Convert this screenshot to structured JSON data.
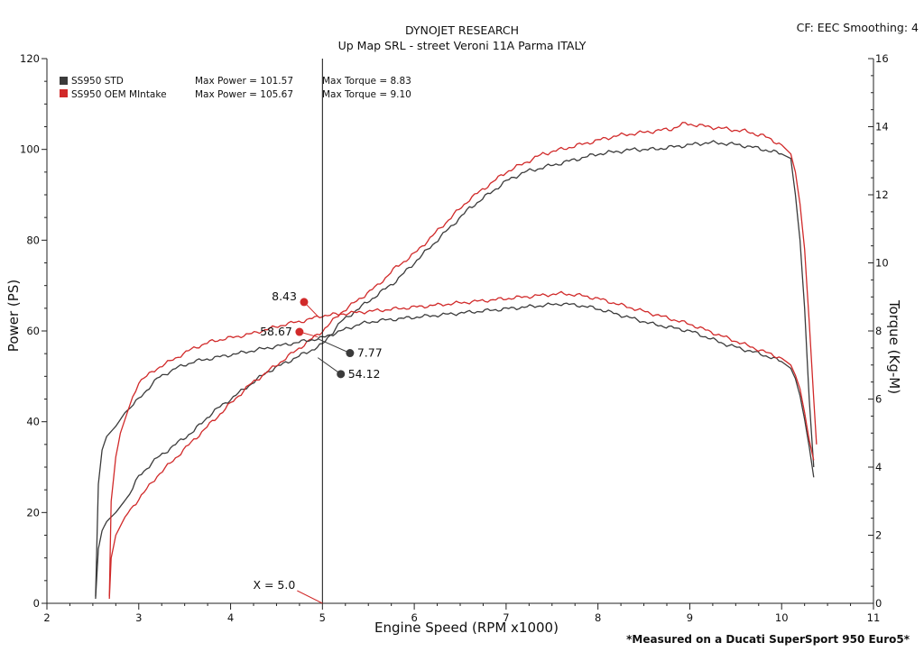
{
  "header": {
    "title": "DYNOJET RESEARCH",
    "subtitle": "Up Map SRL - street Veroni 11A Parma ITALY",
    "settings": "CF: EEC  Smoothing: 4"
  },
  "footnote": "*Measured on a Ducati SuperSport 950 Euro5*",
  "colors": {
    "std": "#3b3b3b",
    "oem": "#d12a2a",
    "axis": "#222222"
  },
  "chart_data": {
    "type": "line",
    "title": "DYNOJET RESEARCH",
    "subtitle": "Up Map SRL - street Veroni 11A Parma ITALY",
    "xlabel": "Engine Speed (RPM x1000)",
    "ylabel_left": "Power (PS)",
    "ylabel_right": "Torque (Kg-M)",
    "xlim": [
      2,
      11
    ],
    "ylim_left": [
      0,
      120
    ],
    "ylim_right": [
      0,
      16
    ],
    "x_ticks": [
      "2",
      "3",
      "4",
      "5",
      "6",
      "7",
      "8",
      "9",
      "10",
      "11"
    ],
    "y_left_ticks": [
      "0",
      "20",
      "40",
      "60",
      "80",
      "100",
      "120"
    ],
    "y_right_ticks": [
      "0",
      "2",
      "4",
      "6",
      "8",
      "10",
      "12",
      "14",
      "16"
    ],
    "grid": false,
    "legend": {
      "position": "top-left",
      "entries": [
        {
          "name": "SS950 STD",
          "color_key": "std",
          "max_power": "Max Power = 101.57",
          "max_torque": "Max Torque = 8.83"
        },
        {
          "name": "SS950 OEM MIntake",
          "color_key": "oem",
          "max_power": "Max Power = 105.67",
          "max_torque": "Max Torque = 9.10"
        }
      ]
    },
    "cursor": {
      "x": 5.0,
      "label": "X = 5.0"
    },
    "series": [
      {
        "name": "SS950 STD",
        "measure": "power",
        "axis": "left",
        "color_key": "std",
        "points": [
          [
            2.53,
            1
          ],
          [
            2.56,
            12
          ],
          [
            2.6,
            16
          ],
          [
            2.65,
            18
          ],
          [
            2.75,
            20
          ],
          [
            2.9,
            24
          ],
          [
            3.0,
            28
          ],
          [
            3.2,
            32
          ],
          [
            3.4,
            35
          ],
          [
            3.6,
            38
          ],
          [
            3.8,
            42
          ],
          [
            4.0,
            45
          ],
          [
            4.2,
            48
          ],
          [
            4.4,
            51
          ],
          [
            4.6,
            53
          ],
          [
            4.8,
            55
          ],
          [
            5.0,
            57
          ],
          [
            5.2,
            62
          ],
          [
            5.4,
            65
          ],
          [
            5.6,
            68
          ],
          [
            5.8,
            71
          ],
          [
            6.0,
            75
          ],
          [
            6.2,
            79
          ],
          [
            6.4,
            83
          ],
          [
            6.6,
            87
          ],
          [
            6.8,
            90
          ],
          [
            7.0,
            93
          ],
          [
            7.2,
            95
          ],
          [
            7.4,
            96
          ],
          [
            7.6,
            97
          ],
          [
            7.8,
            98
          ],
          [
            8.0,
            99
          ],
          [
            8.2,
            99.5
          ],
          [
            8.4,
            100
          ],
          [
            8.6,
            100
          ],
          [
            8.8,
            100.5
          ],
          [
            9.0,
            101
          ],
          [
            9.2,
            101.5
          ],
          [
            9.4,
            101.3
          ],
          [
            9.6,
            100.8
          ],
          [
            9.8,
            100
          ],
          [
            10.0,
            99
          ],
          [
            10.1,
            98
          ],
          [
            10.15,
            90
          ],
          [
            10.2,
            80
          ],
          [
            10.25,
            65
          ],
          [
            10.3,
            45
          ],
          [
            10.35,
            30
          ]
        ]
      },
      {
        "name": "SS950 OEM MIntake",
        "measure": "power",
        "axis": "left",
        "color_key": "oem",
        "points": [
          [
            2.68,
            1
          ],
          [
            2.7,
            10
          ],
          [
            2.75,
            15
          ],
          [
            2.85,
            19
          ],
          [
            3.0,
            23
          ],
          [
            3.2,
            28
          ],
          [
            3.4,
            32
          ],
          [
            3.6,
            36
          ],
          [
            3.8,
            40
          ],
          [
            4.0,
            44
          ],
          [
            4.2,
            48
          ],
          [
            4.4,
            51
          ],
          [
            4.6,
            54
          ],
          [
            4.8,
            57
          ],
          [
            5.0,
            60
          ],
          [
            5.2,
            64
          ],
          [
            5.4,
            67
          ],
          [
            5.6,
            70
          ],
          [
            5.8,
            74
          ],
          [
            6.0,
            77
          ],
          [
            6.2,
            81
          ],
          [
            6.4,
            85
          ],
          [
            6.6,
            89
          ],
          [
            6.8,
            92
          ],
          [
            7.0,
            95
          ],
          [
            7.2,
            97
          ],
          [
            7.4,
            99
          ],
          [
            7.6,
            100
          ],
          [
            7.8,
            101
          ],
          [
            8.0,
            102
          ],
          [
            8.2,
            103
          ],
          [
            8.4,
            103.5
          ],
          [
            8.6,
            104
          ],
          [
            8.8,
            104.5
          ],
          [
            8.95,
            105.7
          ],
          [
            9.2,
            105
          ],
          [
            9.4,
            104.5
          ],
          [
            9.6,
            104
          ],
          [
            9.8,
            103
          ],
          [
            10.0,
            101
          ],
          [
            10.1,
            99
          ],
          [
            10.15,
            95
          ],
          [
            10.2,
            88
          ],
          [
            10.25,
            78
          ],
          [
            10.3,
            62
          ],
          [
            10.35,
            45
          ],
          [
            10.38,
            35
          ]
        ]
      },
      {
        "name": "SS950 STD",
        "measure": "torque",
        "axis": "right",
        "color_key": "std",
        "points": [
          [
            2.53,
            0.2
          ],
          [
            2.56,
            3.5
          ],
          [
            2.6,
            4.5
          ],
          [
            2.65,
            4.9
          ],
          [
            2.75,
            5.2
          ],
          [
            2.85,
            5.6
          ],
          [
            3.0,
            6.0
          ],
          [
            3.2,
            6.6
          ],
          [
            3.4,
            6.9
          ],
          [
            3.6,
            7.1
          ],
          [
            3.8,
            7.2
          ],
          [
            4.0,
            7.3
          ],
          [
            4.2,
            7.4
          ],
          [
            4.4,
            7.5
          ],
          [
            4.6,
            7.6
          ],
          [
            4.8,
            7.7
          ],
          [
            5.0,
            7.8
          ],
          [
            5.2,
            8.0
          ],
          [
            5.4,
            8.2
          ],
          [
            5.6,
            8.3
          ],
          [
            5.8,
            8.35
          ],
          [
            6.0,
            8.4
          ],
          [
            6.2,
            8.45
          ],
          [
            6.4,
            8.5
          ],
          [
            6.6,
            8.55
          ],
          [
            6.8,
            8.6
          ],
          [
            7.0,
            8.65
          ],
          [
            7.2,
            8.7
          ],
          [
            7.4,
            8.75
          ],
          [
            7.6,
            8.8
          ],
          [
            7.8,
            8.75
          ],
          [
            8.0,
            8.65
          ],
          [
            8.2,
            8.5
          ],
          [
            8.4,
            8.35
          ],
          [
            8.6,
            8.2
          ],
          [
            8.8,
            8.1
          ],
          [
            9.0,
            8.0
          ],
          [
            9.2,
            7.8
          ],
          [
            9.4,
            7.6
          ],
          [
            9.6,
            7.45
          ],
          [
            9.8,
            7.3
          ],
          [
            10.0,
            7.1
          ],
          [
            10.1,
            6.9
          ],
          [
            10.15,
            6.6
          ],
          [
            10.2,
            6.1
          ],
          [
            10.25,
            5.4
          ],
          [
            10.3,
            4.6
          ],
          [
            10.35,
            3.7
          ]
        ]
      },
      {
        "name": "SS950 OEM MIntake",
        "measure": "torque",
        "axis": "right",
        "color_key": "oem",
        "points": [
          [
            2.68,
            0.2
          ],
          [
            2.7,
            3.0
          ],
          [
            2.75,
            4.3
          ],
          [
            2.8,
            5.0
          ],
          [
            2.9,
            5.8
          ],
          [
            3.0,
            6.5
          ],
          [
            3.2,
            6.9
          ],
          [
            3.4,
            7.2
          ],
          [
            3.6,
            7.5
          ],
          [
            3.8,
            7.7
          ],
          [
            4.0,
            7.8
          ],
          [
            4.2,
            7.9
          ],
          [
            4.4,
            8.05
          ],
          [
            4.6,
            8.2
          ],
          [
            4.8,
            8.3
          ],
          [
            5.0,
            8.45
          ],
          [
            5.2,
            8.5
          ],
          [
            5.4,
            8.55
          ],
          [
            5.6,
            8.6
          ],
          [
            5.8,
            8.65
          ],
          [
            6.0,
            8.7
          ],
          [
            6.2,
            8.75
          ],
          [
            6.4,
            8.8
          ],
          [
            6.6,
            8.85
          ],
          [
            6.8,
            8.9
          ],
          [
            7.0,
            8.95
          ],
          [
            7.2,
            9.0
          ],
          [
            7.4,
            9.05
          ],
          [
            7.6,
            9.1
          ],
          [
            7.8,
            9.05
          ],
          [
            8.0,
            8.95
          ],
          [
            8.2,
            8.8
          ],
          [
            8.4,
            8.65
          ],
          [
            8.6,
            8.5
          ],
          [
            8.8,
            8.35
          ],
          [
            9.0,
            8.2
          ],
          [
            9.2,
            8.0
          ],
          [
            9.4,
            7.8
          ],
          [
            9.6,
            7.6
          ],
          [
            9.8,
            7.4
          ],
          [
            10.0,
            7.2
          ],
          [
            10.1,
            7.0
          ],
          [
            10.15,
            6.7
          ],
          [
            10.2,
            6.3
          ],
          [
            10.25,
            5.6
          ],
          [
            10.3,
            4.8
          ],
          [
            10.35,
            4.2
          ]
        ]
      }
    ],
    "annotations": [
      {
        "text": "8.43",
        "marker": [
          4.8,
          8.85
        ],
        "axis": "right",
        "color_key": "oem",
        "anchor": [
          4.95,
          8.43
        ],
        "label_side": "left"
      },
      {
        "text": "58.67",
        "marker": [
          4.75,
          59.8
        ],
        "axis": "left",
        "color_key": "oem",
        "anchor": [
          4.95,
          58.67
        ],
        "label_side": "left"
      },
      {
        "text": "7.77",
        "marker": [
          5.3,
          7.35
        ],
        "axis": "right",
        "color_key": "std",
        "anchor": [
          4.95,
          7.77
        ],
        "label_side": "right"
      },
      {
        "text": "54.12",
        "marker": [
          5.2,
          50.5
        ],
        "axis": "left",
        "color_key": "std",
        "anchor": [
          4.95,
          54.12
        ],
        "label_side": "right"
      }
    ]
  }
}
